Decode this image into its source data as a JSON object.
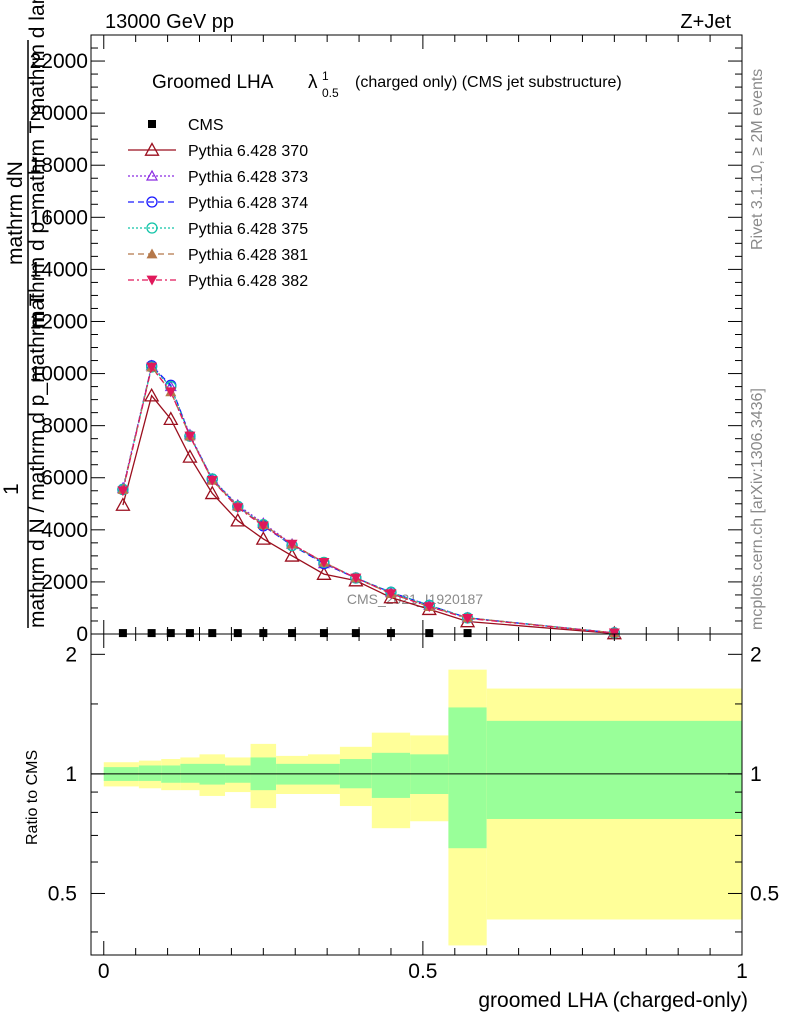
{
  "header": {
    "left": "13000 GeV pp",
    "right": "Z+Jet",
    "side_top": "Rivet 3.1.10, ≥ 2M events",
    "side_bottom": "mcplots.cern.ch [arXiv:1306.3436]",
    "watermark": "CMS_2021_I1920187"
  },
  "chart_data": [
    {
      "type": "line",
      "title_main": "Groomed LHA",
      "title_symbol": "λ",
      "title_sup": "1",
      "title_sub": "0.5",
      "title_rest": "(charged only) (CMS jet substructure)",
      "ylabel_top": "mathrm dN",
      "ylabel_mid": "mathrm d p_mathrm T mathrm d lambda",
      "ylabel_one": "1",
      "ylabel_bottom": "mathrm d N / mathrm d p_mathrm T",
      "ylim": [
        0,
        23000
      ],
      "yticks": [
        0,
        2000,
        4000,
        6000,
        8000,
        10000,
        12000,
        14000,
        16000,
        18000,
        20000,
        22000
      ],
      "ytick_labels": [
        "0",
        "2000",
        "4000",
        "6000",
        "8000",
        "10000",
        "12000",
        "14000",
        "16000",
        "18000",
        "20000",
        "22000"
      ],
      "xlim": [
        -0.02,
        1.0
      ],
      "x": [
        0.03,
        0.075,
        0.105,
        0.135,
        0.17,
        0.21,
        0.25,
        0.295,
        0.345,
        0.395,
        0.45,
        0.51,
        0.57,
        0.8
      ],
      "series": [
        {
          "name": "CMS",
          "color": "#000000",
          "marker": "square",
          "values": [
            35,
            35,
            35,
            35,
            35,
            35,
            35,
            35,
            35,
            35,
            35,
            35,
            35,
            null
          ]
        },
        {
          "name": "Pythia 6.428 370",
          "color": "#9b0f1e",
          "marker": "open-triangle",
          "dash": "solid",
          "values": [
            4950,
            9150,
            8250,
            6800,
            5400,
            4350,
            3650,
            3000,
            2300,
            2050,
            1400,
            950,
            480,
            20
          ]
        },
        {
          "name": "Pythia 6.428 373",
          "color": "#8a2be2",
          "marker": "open-triangle-small",
          "dash": "dotted",
          "values": [
            5600,
            10300,
            9500,
            7650,
            5950,
            4950,
            4250,
            3450,
            2700,
            2150,
            1600,
            1100,
            620,
            40
          ]
        },
        {
          "name": "Pythia 6.428 374",
          "color": "#1a1aff",
          "marker": "open-circle",
          "dash": "dashed",
          "values": [
            5550,
            10300,
            9550,
            7600,
            5950,
            4900,
            4150,
            3400,
            2700,
            2150,
            1600,
            1100,
            620,
            40
          ]
        },
        {
          "name": "Pythia 6.428 375",
          "color": "#12c4a8",
          "marker": "open-circle",
          "dash": "dotted",
          "values": [
            5550,
            10250,
            9500,
            7600,
            5950,
            4900,
            4200,
            3400,
            2750,
            2150,
            1600,
            1100,
            620,
            40
          ]
        },
        {
          "name": "Pythia 6.428 381",
          "color": "#b5784a",
          "marker": "filled-triangle",
          "dash": "dashed",
          "values": [
            5550,
            10250,
            9300,
            7600,
            5900,
            4900,
            4200,
            3450,
            2750,
            2150,
            1550,
            1050,
            620,
            40
          ]
        },
        {
          "name": "Pythia 6.428 382",
          "color": "#e0185a",
          "marker": "filled-triangle-down",
          "dash": "dashdot",
          "values": [
            5500,
            10250,
            9300,
            7600,
            5900,
            4850,
            4150,
            3450,
            2750,
            2150,
            1550,
            1050,
            600,
            40
          ]
        }
      ]
    },
    {
      "type": "area",
      "ylabel": "Ratio to CMS",
      "xlabel": "groomed LHA (charged-only)",
      "ylim": [
        0.35,
        2.25
      ],
      "xlim": [
        -0.02,
        1.0
      ],
      "yticks": [
        0.5,
        1,
        2
      ],
      "ytick_labels": [
        "0.5",
        "1",
        "2"
      ],
      "xticks": [
        0,
        0.5,
        1
      ],
      "xtick_labels": [
        "0",
        "0.5",
        "1"
      ],
      "bins": [
        {
          "x0": 0.0,
          "x1": 0.055,
          "green": [
            0.96,
            1.04
          ],
          "yellow": [
            0.93,
            1.07
          ]
        },
        {
          "x0": 0.055,
          "x1": 0.09,
          "green": [
            0.96,
            1.05
          ],
          "yellow": [
            0.92,
            1.08
          ]
        },
        {
          "x0": 0.09,
          "x1": 0.12,
          "green": [
            0.95,
            1.05
          ],
          "yellow": [
            0.91,
            1.09
          ]
        },
        {
          "x0": 0.12,
          "x1": 0.15,
          "green": [
            0.95,
            1.06
          ],
          "yellow": [
            0.91,
            1.1
          ]
        },
        {
          "x0": 0.15,
          "x1": 0.19,
          "green": [
            0.94,
            1.06
          ],
          "yellow": [
            0.88,
            1.12
          ]
        },
        {
          "x0": 0.19,
          "x1": 0.23,
          "green": [
            0.95,
            1.05
          ],
          "yellow": [
            0.9,
            1.1
          ]
        },
        {
          "x0": 0.23,
          "x1": 0.27,
          "green": [
            0.91,
            1.1
          ],
          "yellow": [
            0.82,
            1.19
          ]
        },
        {
          "x0": 0.27,
          "x1": 0.32,
          "green": [
            0.94,
            1.06
          ],
          "yellow": [
            0.89,
            1.11
          ]
        },
        {
          "x0": 0.32,
          "x1": 0.37,
          "green": [
            0.94,
            1.06
          ],
          "yellow": [
            0.89,
            1.12
          ]
        },
        {
          "x0": 0.37,
          "x1": 0.42,
          "green": [
            0.92,
            1.09
          ],
          "yellow": [
            0.83,
            1.17
          ]
        },
        {
          "x0": 0.42,
          "x1": 0.48,
          "green": [
            0.87,
            1.13
          ],
          "yellow": [
            0.73,
            1.27
          ]
        },
        {
          "x0": 0.48,
          "x1": 0.54,
          "green": [
            0.89,
            1.12
          ],
          "yellow": [
            0.76,
            1.25
          ]
        },
        {
          "x0": 0.54,
          "x1": 0.6,
          "green": [
            0.65,
            1.47
          ],
          "yellow": [
            0.37,
            1.83
          ]
        },
        {
          "x0": 0.6,
          "x1": 1.0,
          "green": [
            0.77,
            1.36
          ],
          "yellow": [
            0.43,
            1.64
          ]
        }
      ],
      "reference": 1.0,
      "colors": {
        "green": "#99ff99",
        "yellow": "#ffff99"
      }
    }
  ]
}
